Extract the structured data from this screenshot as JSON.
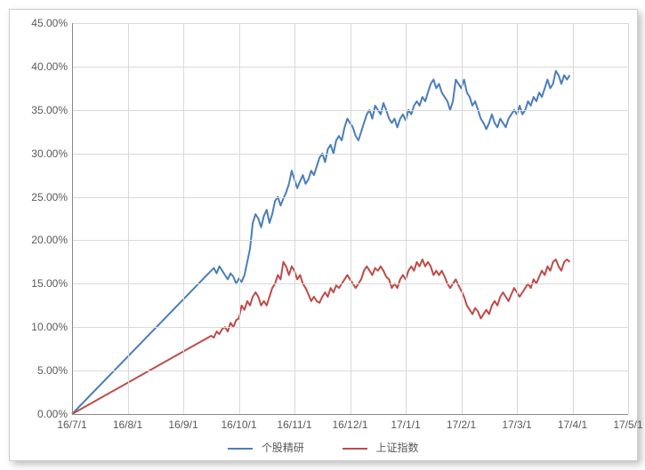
{
  "chart": {
    "type": "line",
    "background_color": "#ffffff",
    "border_color": "#cccccc",
    "grid_color": "#d9d9d9",
    "axis_color": "#888888",
    "label_color": "#595959",
    "label_fontsize": 12,
    "line_width": 2,
    "y": {
      "min": 0,
      "max": 45,
      "tick_step": 5,
      "ticks": [
        "0.00%",
        "5.00%",
        "10.00%",
        "15.00%",
        "20.00%",
        "25.00%",
        "30.00%",
        "35.00%",
        "40.00%",
        "45.00%"
      ]
    },
    "x": {
      "min": 0,
      "max": 10,
      "ticks": [
        "16/7/1",
        "16/8/1",
        "16/9/1",
        "16/10/1",
        "16/11/1",
        "16/12/1",
        "17/1/1",
        "17/2/1",
        "17/3/1",
        "17/4/1",
        "17/5/1"
      ]
    },
    "series": [
      {
        "name": "个股精研",
        "color": "#4a7ebb",
        "data": [
          [
            0.0,
            0.0
          ],
          [
            2.5,
            16.5
          ],
          [
            2.55,
            16.8
          ],
          [
            2.6,
            16.2
          ],
          [
            2.65,
            17.0
          ],
          [
            2.7,
            16.5
          ],
          [
            2.75,
            16.0
          ],
          [
            2.8,
            15.5
          ],
          [
            2.85,
            16.2
          ],
          [
            2.9,
            15.8
          ],
          [
            2.95,
            15.0
          ],
          [
            3.0,
            15.6
          ],
          [
            3.05,
            15.2
          ],
          [
            3.1,
            16.0
          ],
          [
            3.15,
            17.5
          ],
          [
            3.2,
            19.0
          ],
          [
            3.25,
            22.0
          ],
          [
            3.3,
            23.0
          ],
          [
            3.35,
            22.5
          ],
          [
            3.4,
            21.5
          ],
          [
            3.45,
            22.8
          ],
          [
            3.5,
            23.5
          ],
          [
            3.55,
            22.0
          ],
          [
            3.6,
            23.0
          ],
          [
            3.65,
            24.5
          ],
          [
            3.7,
            25.0
          ],
          [
            3.75,
            24.0
          ],
          [
            3.8,
            24.8
          ],
          [
            3.85,
            25.5
          ],
          [
            3.9,
            26.5
          ],
          [
            3.95,
            28.0
          ],
          [
            4.0,
            27.0
          ],
          [
            4.05,
            26.0
          ],
          [
            4.1,
            26.8
          ],
          [
            4.15,
            27.5
          ],
          [
            4.2,
            26.5
          ],
          [
            4.25,
            27.0
          ],
          [
            4.3,
            28.0
          ],
          [
            4.35,
            27.5
          ],
          [
            4.4,
            28.5
          ],
          [
            4.45,
            29.5
          ],
          [
            4.5,
            30.0
          ],
          [
            4.55,
            29.0
          ],
          [
            4.6,
            30.5
          ],
          [
            4.65,
            31.0
          ],
          [
            4.7,
            30.0
          ],
          [
            4.75,
            31.5
          ],
          [
            4.8,
            32.0
          ],
          [
            4.85,
            31.5
          ],
          [
            4.9,
            33.0
          ],
          [
            4.95,
            34.0
          ],
          [
            5.0,
            33.5
          ],
          [
            5.05,
            33.0
          ],
          [
            5.1,
            32.0
          ],
          [
            5.15,
            31.5
          ],
          [
            5.2,
            32.5
          ],
          [
            5.25,
            33.5
          ],
          [
            5.3,
            34.5
          ],
          [
            5.35,
            35.0
          ],
          [
            5.4,
            34.0
          ],
          [
            5.45,
            35.5
          ],
          [
            5.5,
            35.0
          ],
          [
            5.55,
            34.5
          ],
          [
            5.6,
            35.8
          ],
          [
            5.65,
            35.0
          ],
          [
            5.7,
            34.0
          ],
          [
            5.75,
            33.5
          ],
          [
            5.8,
            34.0
          ],
          [
            5.85,
            33.0
          ],
          [
            5.9,
            34.0
          ],
          [
            5.95,
            34.5
          ],
          [
            6.0,
            33.8
          ],
          [
            6.05,
            35.0
          ],
          [
            6.1,
            34.5
          ],
          [
            6.15,
            35.5
          ],
          [
            6.2,
            36.0
          ],
          [
            6.25,
            35.5
          ],
          [
            6.3,
            36.5
          ],
          [
            6.35,
            36.0
          ],
          [
            6.4,
            37.0
          ],
          [
            6.45,
            38.0
          ],
          [
            6.5,
            38.5
          ],
          [
            6.55,
            37.5
          ],
          [
            6.6,
            38.0
          ],
          [
            6.65,
            37.0
          ],
          [
            6.7,
            36.5
          ],
          [
            6.75,
            36.0
          ],
          [
            6.8,
            35.0
          ],
          [
            6.85,
            36.0
          ],
          [
            6.9,
            38.5
          ],
          [
            6.95,
            38.0
          ],
          [
            7.0,
            37.5
          ],
          [
            7.05,
            38.5
          ],
          [
            7.1,
            37.0
          ],
          [
            7.15,
            36.5
          ],
          [
            7.2,
            35.5
          ],
          [
            7.25,
            36.0
          ],
          [
            7.3,
            35.0
          ],
          [
            7.35,
            34.0
          ],
          [
            7.4,
            33.5
          ],
          [
            7.45,
            32.8
          ],
          [
            7.5,
            33.5
          ],
          [
            7.55,
            34.5
          ],
          [
            7.6,
            33.5
          ],
          [
            7.65,
            33.0
          ],
          [
            7.7,
            34.0
          ],
          [
            7.75,
            33.5
          ],
          [
            7.8,
            33.0
          ],
          [
            7.85,
            34.0
          ],
          [
            7.9,
            34.5
          ],
          [
            7.95,
            35.0
          ],
          [
            8.0,
            34.5
          ],
          [
            8.05,
            35.5
          ],
          [
            8.1,
            34.5
          ],
          [
            8.15,
            35.0
          ],
          [
            8.2,
            36.0
          ],
          [
            8.25,
            35.5
          ],
          [
            8.3,
            36.5
          ],
          [
            8.35,
            36.0
          ],
          [
            8.4,
            37.0
          ],
          [
            8.45,
            36.5
          ],
          [
            8.5,
            37.5
          ],
          [
            8.55,
            38.5
          ],
          [
            8.6,
            37.5
          ],
          [
            8.65,
            38.0
          ],
          [
            8.7,
            39.5
          ],
          [
            8.75,
            39.0
          ],
          [
            8.8,
            38.0
          ],
          [
            8.85,
            39.0
          ],
          [
            8.9,
            38.5
          ],
          [
            8.95,
            39.0
          ]
        ]
      },
      {
        "name": "上证指数",
        "color": "#be4b48",
        "data": [
          [
            0.0,
            0.0
          ],
          [
            2.5,
            9.0
          ],
          [
            2.55,
            8.8
          ],
          [
            2.6,
            9.5
          ],
          [
            2.65,
            9.2
          ],
          [
            2.7,
            9.8
          ],
          [
            2.75,
            10.0
          ],
          [
            2.8,
            9.5
          ],
          [
            2.85,
            10.5
          ],
          [
            2.9,
            10.0
          ],
          [
            2.95,
            10.8
          ],
          [
            3.0,
            11.0
          ],
          [
            3.05,
            12.5
          ],
          [
            3.1,
            12.0
          ],
          [
            3.15,
            13.0
          ],
          [
            3.2,
            12.5
          ],
          [
            3.25,
            13.5
          ],
          [
            3.3,
            14.0
          ],
          [
            3.35,
            13.5
          ],
          [
            3.4,
            12.5
          ],
          [
            3.45,
            13.0
          ],
          [
            3.5,
            12.5
          ],
          [
            3.55,
            13.5
          ],
          [
            3.6,
            14.5
          ],
          [
            3.65,
            15.0
          ],
          [
            3.7,
            16.0
          ],
          [
            3.75,
            15.5
          ],
          [
            3.8,
            17.5
          ],
          [
            3.85,
            17.0
          ],
          [
            3.9,
            16.0
          ],
          [
            3.95,
            17.0
          ],
          [
            4.0,
            16.5
          ],
          [
            4.05,
            15.5
          ],
          [
            4.1,
            16.0
          ],
          [
            4.15,
            15.0
          ],
          [
            4.2,
            14.5
          ],
          [
            4.25,
            13.8
          ],
          [
            4.3,
            13.0
          ],
          [
            4.35,
            13.5
          ],
          [
            4.4,
            13.0
          ],
          [
            4.45,
            12.8
          ],
          [
            4.5,
            13.5
          ],
          [
            4.55,
            14.0
          ],
          [
            4.6,
            13.5
          ],
          [
            4.65,
            14.5
          ],
          [
            4.7,
            14.0
          ],
          [
            4.75,
            14.8
          ],
          [
            4.8,
            14.5
          ],
          [
            4.85,
            15.0
          ],
          [
            4.9,
            15.5
          ],
          [
            4.95,
            16.0
          ],
          [
            5.0,
            15.5
          ],
          [
            5.05,
            15.0
          ],
          [
            5.1,
            14.5
          ],
          [
            5.15,
            15.0
          ],
          [
            5.2,
            15.5
          ],
          [
            5.25,
            16.5
          ],
          [
            5.3,
            17.0
          ],
          [
            5.35,
            16.5
          ],
          [
            5.4,
            16.0
          ],
          [
            5.45,
            16.8
          ],
          [
            5.5,
            16.5
          ],
          [
            5.55,
            17.0
          ],
          [
            5.6,
            16.5
          ],
          [
            5.65,
            15.8
          ],
          [
            5.7,
            15.5
          ],
          [
            5.75,
            14.5
          ],
          [
            5.8,
            15.0
          ],
          [
            5.85,
            14.5
          ],
          [
            5.9,
            15.5
          ],
          [
            5.95,
            16.0
          ],
          [
            6.0,
            15.5
          ],
          [
            6.05,
            16.5
          ],
          [
            6.1,
            17.0
          ],
          [
            6.15,
            16.5
          ],
          [
            6.2,
            17.5
          ],
          [
            6.25,
            17.0
          ],
          [
            6.3,
            17.8
          ],
          [
            6.35,
            17.0
          ],
          [
            6.4,
            17.5
          ],
          [
            6.45,
            17.0
          ],
          [
            6.5,
            16.0
          ],
          [
            6.55,
            16.5
          ],
          [
            6.6,
            16.0
          ],
          [
            6.65,
            16.5
          ],
          [
            6.7,
            15.8
          ],
          [
            6.75,
            15.0
          ],
          [
            6.8,
            14.5
          ],
          [
            6.85,
            15.0
          ],
          [
            6.9,
            15.5
          ],
          [
            6.95,
            14.8
          ],
          [
            7.0,
            14.2
          ],
          [
            7.05,
            13.5
          ],
          [
            7.1,
            12.5
          ],
          [
            7.15,
            12.0
          ],
          [
            7.2,
            11.5
          ],
          [
            7.25,
            12.2
          ],
          [
            7.3,
            11.8
          ],
          [
            7.35,
            11.0
          ],
          [
            7.4,
            11.5
          ],
          [
            7.45,
            12.0
          ],
          [
            7.5,
            11.5
          ],
          [
            7.55,
            12.5
          ],
          [
            7.6,
            13.0
          ],
          [
            7.65,
            12.5
          ],
          [
            7.7,
            13.5
          ],
          [
            7.75,
            14.0
          ],
          [
            7.8,
            13.5
          ],
          [
            7.85,
            13.0
          ],
          [
            7.9,
            13.8
          ],
          [
            7.95,
            14.5
          ],
          [
            8.0,
            14.0
          ],
          [
            8.05,
            13.5
          ],
          [
            8.1,
            14.0
          ],
          [
            8.15,
            14.5
          ],
          [
            8.2,
            15.0
          ],
          [
            8.25,
            14.5
          ],
          [
            8.3,
            15.5
          ],
          [
            8.35,
            15.0
          ],
          [
            8.4,
            15.8
          ],
          [
            8.45,
            16.5
          ],
          [
            8.5,
            16.0
          ],
          [
            8.55,
            17.0
          ],
          [
            8.6,
            16.5
          ],
          [
            8.65,
            17.5
          ],
          [
            8.7,
            17.8
          ],
          [
            8.75,
            17.0
          ],
          [
            8.8,
            16.5
          ],
          [
            8.85,
            17.5
          ],
          [
            8.9,
            17.8
          ],
          [
            8.95,
            17.5
          ]
        ]
      }
    ],
    "legend": {
      "position": "bottom",
      "items": [
        "个股精研",
        "上证指数"
      ]
    }
  }
}
